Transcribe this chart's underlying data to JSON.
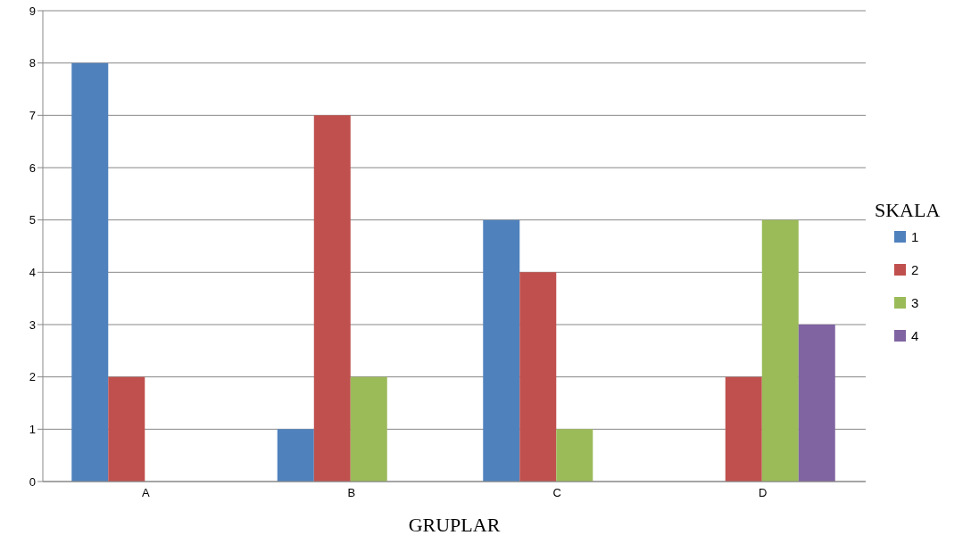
{
  "chart_data": {
    "type": "bar",
    "xlabel": "GRUPLAR",
    "legend_title": "SKALA",
    "categories": [
      "A",
      "B",
      "C",
      "D"
    ],
    "series": [
      {
        "name": "1",
        "color": "#4f81bd",
        "values": [
          8,
          1,
          5,
          0
        ]
      },
      {
        "name": "2",
        "color": "#c0504d",
        "values": [
          2,
          7,
          4,
          2
        ]
      },
      {
        "name": "3",
        "color": "#9bbb59",
        "values": [
          0,
          2,
          1,
          5
        ]
      },
      {
        "name": "4",
        "color": "#8064a2",
        "values": [
          0,
          0,
          0,
          3
        ]
      }
    ],
    "ylim": [
      0,
      9
    ],
    "yticks": [
      0,
      1,
      2,
      3,
      4,
      5,
      6,
      7,
      8,
      9
    ],
    "grid": "y",
    "legend": "right"
  }
}
